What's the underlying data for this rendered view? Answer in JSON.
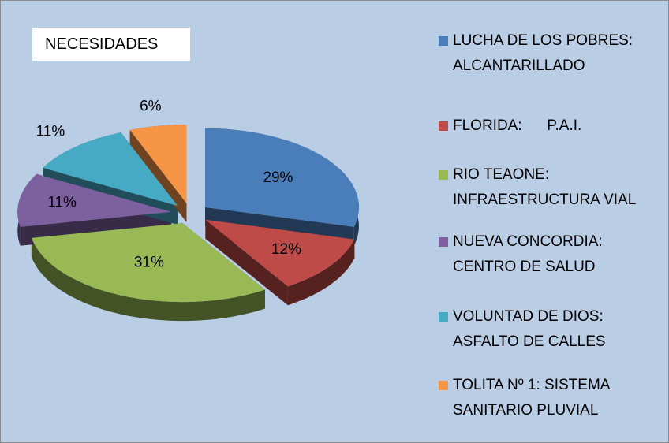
{
  "chart_data": {
    "type": "pie",
    "title": "NECESIDADES",
    "categories": [
      "LUCHA DE LOS POBRES: ALCANTARILLADO",
      "FLORIDA:      P.A.I.",
      "RIO TEAONE: INFRAESTRUCTURA VIAL",
      "NUEVA CONCORDIA: CENTRO DE SALUD",
      "VOLUNTAD DE DIOS: ASFALTO DE CALLES",
      "TOLITA Nº 1: SISTEMA SANITARIO PLUVIAL"
    ],
    "values": [
      29,
      12,
      31,
      11,
      11,
      6
    ],
    "value_labels": [
      "29%",
      "12%",
      "31%",
      "11%",
      "11%",
      "6%"
    ],
    "colors": [
      "#4a7ebb",
      "#be4b48",
      "#98b954",
      "#7d60a0",
      "#46aac5",
      "#f69545"
    ],
    "legend": "right"
  }
}
